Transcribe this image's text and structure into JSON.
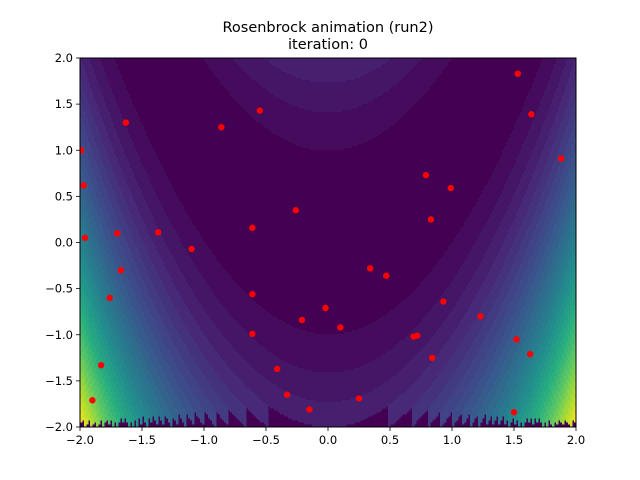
{
  "chart_data": {
    "type": "scatter",
    "title_line1": "Rosenbrock animation (run2)",
    "title_line2": "iteration: 0",
    "xlabel": "",
    "ylabel": "",
    "xlim": [
      -2.0,
      2.0
    ],
    "ylim": [
      -2.0,
      2.0
    ],
    "xticks": [
      "−2.0",
      "−1.5",
      "−1.0",
      "−0.5",
      "0.0",
      "0.5",
      "1.0",
      "1.5",
      "2.0"
    ],
    "yticks": [
      "−2.0",
      "−1.5",
      "−1.0",
      "−0.5",
      "0.0",
      "0.5",
      "1.0",
      "1.5",
      "2.0"
    ],
    "grid": false,
    "background": "filled contour of the Rosenbrock function f(x,y)=(1-x)^2+100(y-x^2)^2, viridis colormap",
    "contour_levels": [
      0,
      100,
      200,
      300,
      400,
      500,
      600,
      700,
      800,
      900,
      1000,
      1100,
      1200,
      1300,
      1400,
      1500,
      1600,
      1700,
      1800,
      1900,
      2000,
      2100,
      2200,
      2300,
      2400,
      2500,
      2600,
      2700,
      2800,
      2900,
      3000,
      3100,
      3200,
      3300,
      3400,
      3500,
      3600
    ],
    "colormap": [
      "#440154",
      "#472d7b",
      "#3b528b",
      "#2c728e",
      "#21918c",
      "#28ae80",
      "#5ec962",
      "#addc30",
      "#fde725"
    ],
    "point_color": "#ff0000",
    "points": [
      {
        "x": -1.99,
        "y": 1.0
      },
      {
        "x": -1.97,
        "y": 0.62
      },
      {
        "x": -1.96,
        "y": 0.05
      },
      {
        "x": -1.63,
        "y": 1.3
      },
      {
        "x": -1.7,
        "y": 0.1
      },
      {
        "x": -1.67,
        "y": -0.3
      },
      {
        "x": -1.76,
        "y": -0.6
      },
      {
        "x": -1.83,
        "y": -1.33
      },
      {
        "x": -1.9,
        "y": -1.71
      },
      {
        "x": -1.37,
        "y": 0.11
      },
      {
        "x": -1.1,
        "y": -0.07
      },
      {
        "x": -0.86,
        "y": 1.25
      },
      {
        "x": -0.55,
        "y": 1.43
      },
      {
        "x": -0.61,
        "y": 0.16
      },
      {
        "x": -0.61,
        "y": -0.56
      },
      {
        "x": -0.61,
        "y": -0.99
      },
      {
        "x": -0.26,
        "y": 0.35
      },
      {
        "x": -0.21,
        "y": -0.84
      },
      {
        "x": -0.02,
        "y": -0.71
      },
      {
        "x": 0.1,
        "y": -0.92
      },
      {
        "x": -0.41,
        "y": -1.37
      },
      {
        "x": -0.33,
        "y": -1.65
      },
      {
        "x": -0.15,
        "y": -1.81
      },
      {
        "x": 0.25,
        "y": -1.69
      },
      {
        "x": 0.34,
        "y": -0.28
      },
      {
        "x": 0.47,
        "y": -0.36
      },
      {
        "x": 0.69,
        "y": -1.02
      },
      {
        "x": 0.72,
        "y": -1.01
      },
      {
        "x": 0.84,
        "y": -1.25
      },
      {
        "x": 0.79,
        "y": 0.73
      },
      {
        "x": 0.83,
        "y": 0.25
      },
      {
        "x": 0.99,
        "y": 0.59
      },
      {
        "x": 0.93,
        "y": -0.64
      },
      {
        "x": 1.23,
        "y": -0.8
      },
      {
        "x": 1.53,
        "y": 1.83
      },
      {
        "x": 1.64,
        "y": 1.39
      },
      {
        "x": 1.88,
        "y": 0.91
      },
      {
        "x": 1.52,
        "y": -1.05
      },
      {
        "x": 1.63,
        "y": -1.21
      },
      {
        "x": 1.5,
        "y": -1.84
      }
    ]
  }
}
